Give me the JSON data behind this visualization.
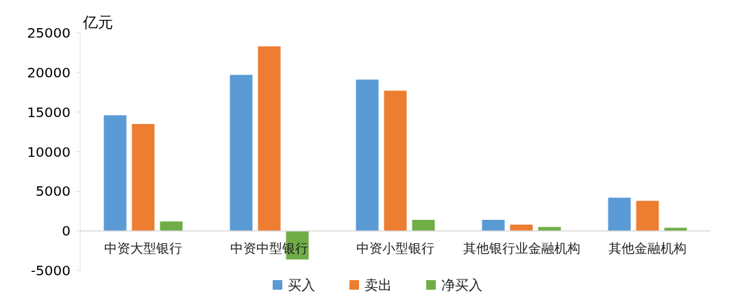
{
  "chart_data": {
    "type": "bar",
    "ylabel": "亿元",
    "categories": [
      "中资大型银行",
      "中资中型银行",
      "中资小型银行",
      "其他银行业金融机构",
      "其他金融机构"
    ],
    "series": [
      {
        "name": "买入",
        "color": "#5b9bd5",
        "values": [
          14600,
          19700,
          19100,
          1400,
          4200
        ]
      },
      {
        "name": "卖出",
        "color": "#ed7d31",
        "values": [
          13500,
          23300,
          17700,
          800,
          3800
        ]
      },
      {
        "name": "净买入",
        "color": "#70ad47",
        "values": [
          1200,
          -3600,
          1400,
          500,
          400
        ]
      }
    ],
    "ylim": [
      -5000,
      25000
    ],
    "yticks": [
      -5000,
      0,
      5000,
      10000,
      15000,
      20000,
      25000
    ],
    "grid": false,
    "legend": "bottom"
  }
}
